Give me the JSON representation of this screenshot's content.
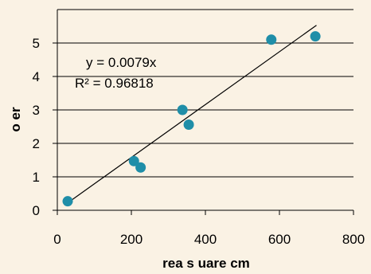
{
  "chart_data": {
    "type": "scatter",
    "title": "",
    "xlabel": "rea s uare cm",
    "ylabel": "o er",
    "xlim": [
      0,
      800
    ],
    "ylim": [
      0,
      6
    ],
    "x_ticks": [
      "0",
      "200",
      "400",
      "600",
      "800"
    ],
    "y_ticks": [
      "0",
      "1",
      "2",
      "3",
      "4",
      "5"
    ],
    "grid": "horizontal",
    "legend": "none",
    "points": [
      {
        "x": 28,
        "y": 0.27
      },
      {
        "x": 207,
        "y": 1.47
      },
      {
        "x": 225,
        "y": 1.28
      },
      {
        "x": 338,
        "y": 3.0
      },
      {
        "x": 355,
        "y": 2.56
      },
      {
        "x": 578,
        "y": 5.1
      },
      {
        "x": 697,
        "y": 5.2
      }
    ],
    "trendline": {
      "type": "linear",
      "slope": 0.0079,
      "intercept": 0,
      "x_range": [
        20,
        700
      ],
      "equation": "y = 0.0079x",
      "r_squared": "R² = 0.96818"
    },
    "colors": {
      "background": "#faf2e4",
      "marker": "#1f8ea8",
      "line": "#000000",
      "grid": "#000000"
    }
  }
}
